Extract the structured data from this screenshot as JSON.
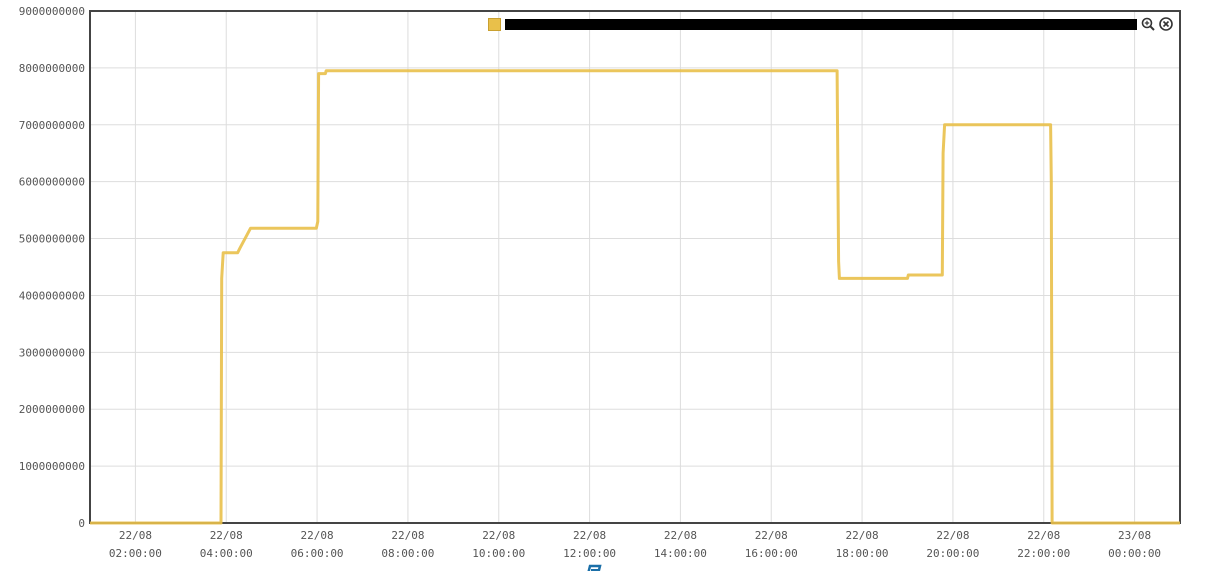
{
  "chart_data": {
    "type": "line",
    "title": "",
    "xlabel": "",
    "ylabel": "",
    "ylim": [
      0,
      9000000000
    ],
    "yticks": [
      0,
      1000000000,
      2000000000,
      3000000000,
      4000000000,
      5000000000,
      6000000000,
      7000000000,
      8000000000,
      9000000000
    ],
    "xlim": [
      "2022-08-22T01:00:00",
      "2022-08-23T01:00:00"
    ],
    "xticks": [
      {
        "t": "2022-08-22T02:00:00",
        "date": "22/08",
        "time": "02:00:00"
      },
      {
        "t": "2022-08-22T04:00:00",
        "date": "22/08",
        "time": "04:00:00"
      },
      {
        "t": "2022-08-22T06:00:00",
        "date": "22/08",
        "time": "06:00:00"
      },
      {
        "t": "2022-08-22T08:00:00",
        "date": "22/08",
        "time": "08:00:00"
      },
      {
        "t": "2022-08-22T10:00:00",
        "date": "22/08",
        "time": "10:00:00"
      },
      {
        "t": "2022-08-22T12:00:00",
        "date": "22/08",
        "time": "12:00:00"
      },
      {
        "t": "2022-08-22T14:00:00",
        "date": "22/08",
        "time": "14:00:00"
      },
      {
        "t": "2022-08-22T16:00:00",
        "date": "22/08",
        "time": "16:00:00"
      },
      {
        "t": "2022-08-22T18:00:00",
        "date": "22/08",
        "time": "18:00:00"
      },
      {
        "t": "2022-08-22T20:00:00",
        "date": "22/08",
        "time": "20:00:00"
      },
      {
        "t": "2022-08-22T22:00:00",
        "date": "22/08",
        "time": "22:00:00"
      },
      {
        "t": "2022-08-23T00:00:00",
        "date": "23/08",
        "time": "00:00:00"
      }
    ],
    "grid": true,
    "legend_position": "top-right",
    "series": [
      {
        "name": "",
        "color": "#e9c04a",
        "points": [
          [
            "2022-08-22T01:00:00",
            0
          ],
          [
            "2022-08-22T03:53:00",
            0
          ],
          [
            "2022-08-22T03:54:00",
            4300000000
          ],
          [
            "2022-08-22T03:56:00",
            4750000000
          ],
          [
            "2022-08-22T04:15:00",
            4750000000
          ],
          [
            "2022-08-22T04:18:00",
            4830000000
          ],
          [
            "2022-08-22T04:32:00",
            5180000000
          ],
          [
            "2022-08-22T05:59:00",
            5180000000
          ],
          [
            "2022-08-22T06:01:00",
            5300000000
          ],
          [
            "2022-08-22T06:02:00",
            7900000000
          ],
          [
            "2022-08-22T06:11:00",
            7900000000
          ],
          [
            "2022-08-22T06:12:00",
            7950000000
          ],
          [
            "2022-08-22T17:27:00",
            7950000000
          ],
          [
            "2022-08-22T17:29:00",
            4600000000
          ],
          [
            "2022-08-22T17:30:00",
            4300000000
          ],
          [
            "2022-08-22T19:00:00",
            4300000000
          ],
          [
            "2022-08-22T19:01:00",
            4360000000
          ],
          [
            "2022-08-22T19:46:00",
            4360000000
          ],
          [
            "2022-08-22T19:47:00",
            6500000000
          ],
          [
            "2022-08-22T19:49:00",
            7000000000
          ],
          [
            "2022-08-22T22:09:00",
            7000000000
          ],
          [
            "2022-08-22T22:10:00",
            6000000000
          ],
          [
            "2022-08-22T22:11:00",
            0
          ],
          [
            "2022-08-23T01:00:00",
            0
          ]
        ]
      }
    ]
  },
  "legend": {
    "zoom_icon": "zoom-in-icon",
    "close_icon": "close-icon"
  }
}
